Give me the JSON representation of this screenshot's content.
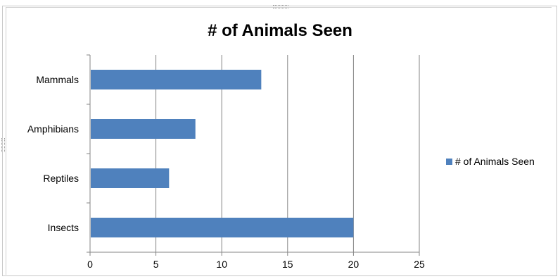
{
  "chart_data": {
    "type": "bar",
    "orientation": "horizontal",
    "title": "# of Animals Seen",
    "categories": [
      "Mammals",
      "Amphibians",
      "Reptiles",
      "Insects"
    ],
    "series": [
      {
        "name": "# of Animals Seen",
        "values": [
          13,
          8,
          6,
          20
        ],
        "color": "#4f81bd"
      }
    ],
    "xlim": [
      0,
      25
    ],
    "xticks": [
      0,
      5,
      10,
      15,
      20,
      25
    ],
    "grid": true,
    "legend_position": "right"
  }
}
